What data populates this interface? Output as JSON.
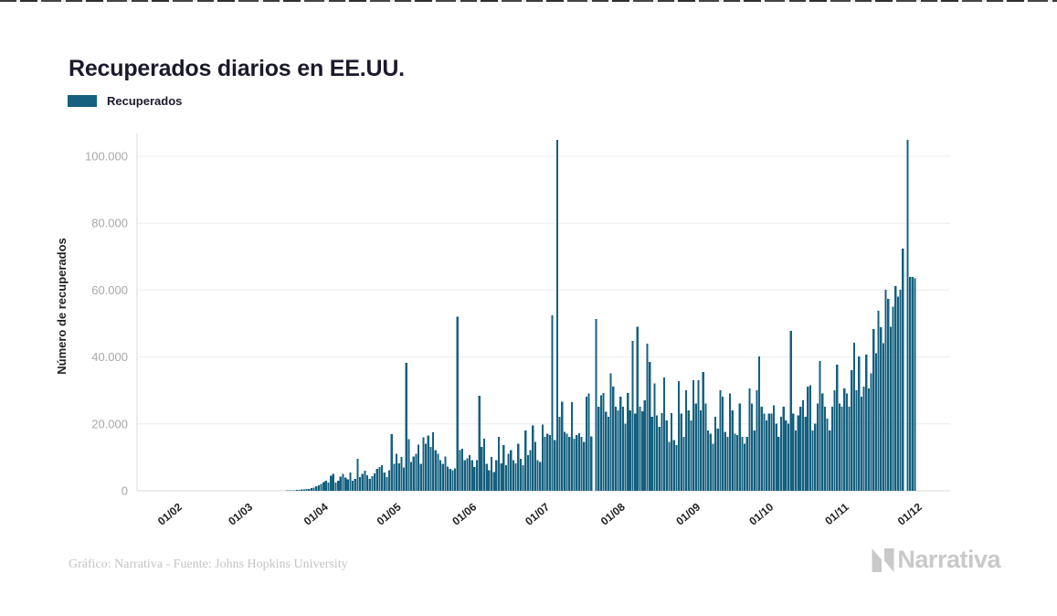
{
  "page": {
    "title": "Recuperados diarios en EE.UU.",
    "credit": "Gráfico: Narrativa - Fuente: Johns Hopkins University",
    "brand": "Narrativa"
  },
  "legend": {
    "label": "Recuperados",
    "color": "#15607f"
  },
  "chart_data": {
    "type": "bar",
    "title": "Recuperados diarios en EE.UU.",
    "series_name": "Recuperados",
    "xlabel": "",
    "ylabel": "Número de recuperados",
    "ylim": [
      0,
      105000
    ],
    "grid": "horizontal",
    "legend_position": "top-left",
    "bar_color": "#15607f",
    "x_start_date": "01/02/2020",
    "x_end_date": "01/12/2020",
    "frequency": "daily",
    "y_ticks": [
      {
        "label": "0",
        "value": 0
      },
      {
        "label": "20.000",
        "value": 20000
      },
      {
        "label": "40.000",
        "value": 40000
      },
      {
        "label": "60.000",
        "value": 60000
      },
      {
        "label": "80.000",
        "value": 80000
      },
      {
        "label": "100.000",
        "value": 100000
      }
    ],
    "x_ticks": [
      {
        "label": "01/02",
        "index": 0
      },
      {
        "label": "01/03",
        "index": 29
      },
      {
        "label": "01/04",
        "index": 60
      },
      {
        "label": "01/05",
        "index": 90
      },
      {
        "label": "01/06",
        "index": 121
      },
      {
        "label": "01/07",
        "index": 151
      },
      {
        "label": "01/08",
        "index": 182
      },
      {
        "label": "01/09",
        "index": 213
      },
      {
        "label": "01/10",
        "index": 243
      },
      {
        "label": "01/11",
        "index": 274
      },
      {
        "label": "01/12",
        "index": 304
      }
    ],
    "values": [
      0,
      0,
      0,
      0,
      0,
      0,
      0,
      0,
      0,
      0,
      0,
      0,
      0,
      0,
      0,
      0,
      0,
      0,
      0,
      0,
      0,
      0,
      0,
      0,
      0,
      0,
      0,
      0,
      0,
      0,
      0,
      0,
      0,
      0,
      0,
      0,
      0,
      0,
      0,
      0,
      0,
      0,
      0,
      0,
      100,
      100,
      150,
      200,
      250,
      300,
      350,
      400,
      500,
      600,
      800,
      1000,
      1300,
      1600,
      2000,
      2600,
      3000,
      2400,
      4500,
      5000,
      2500,
      3000,
      4200,
      5000,
      4000,
      3400,
      5500,
      3000,
      3600,
      9600,
      4100,
      5100,
      6000,
      4600,
      3500,
      4400,
      5200,
      6500,
      7100,
      7600,
      5500,
      4100,
      6200,
      17000,
      8000,
      11000,
      8200,
      10100,
      7000,
      38200,
      15500,
      8600,
      10200,
      11000,
      13800,
      8100,
      16000,
      14100,
      16500,
      13100,
      17500,
      12200,
      11100,
      9200,
      8100,
      10300,
      7200,
      6600,
      6100,
      6700,
      52000,
      12100,
      12600,
      9100,
      9700,
      10600,
      9200,
      7100,
      9200,
      28400,
      13100,
      15600,
      8100,
      6200,
      10100,
      5600,
      9100,
      16100,
      8200,
      13600,
      7600,
      11100,
      12200,
      9100,
      8200,
      14100,
      9600,
      7600,
      18100,
      10600,
      12100,
      19600,
      14600,
      9100,
      8600,
      19800,
      16100,
      17100,
      16600,
      52400,
      15100,
      104900,
      22100,
      26600,
      17600,
      17100,
      16100,
      26500,
      15600,
      16600,
      17200,
      16100,
      14600,
      28100,
      29100,
      16200,
      0,
      51400,
      25100,
      28600,
      29200,
      23600,
      22100,
      35100,
      31100,
      25200,
      24100,
      28200,
      25100,
      20100,
      29200,
      24100,
      44800,
      23100,
      49000,
      25200,
      23800,
      27100,
      44000,
      38500,
      22100,
      32100,
      22600,
      19100,
      23200,
      33900,
      21100,
      14600,
      23200,
      15100,
      13600,
      32800,
      23100,
      16100,
      30100,
      24100,
      21100,
      33100,
      26100,
      33100,
      24100,
      35500,
      26100,
      18100,
      17100,
      14100,
      22100,
      18600,
      30100,
      28100,
      17600,
      16100,
      29100,
      24100,
      17100,
      16600,
      26100,
      16100,
      14100,
      16100,
      30600,
      26100,
      18100,
      30100,
      40200,
      25100,
      23100,
      21100,
      23100,
      23100,
      25600,
      20100,
      16100,
      22100,
      25100,
      21100,
      20100,
      47800,
      23100,
      18100,
      22600,
      25100,
      27100,
      22100,
      31100,
      31600,
      18100,
      20100,
      26100,
      38800,
      29100,
      25100,
      21600,
      18100,
      25100,
      30100,
      37700,
      26100,
      25100,
      30600,
      29100,
      25100,
      36100,
      44300,
      30100,
      40100,
      28100,
      31100,
      40700,
      30600,
      35100,
      48400,
      41100,
      53800,
      48900,
      44100,
      60100,
      57400,
      49100,
      55100,
      61200,
      58100,
      60100,
      72400,
      0,
      104900,
      63900,
      63900,
      63500,
      0,
      0
    ]
  }
}
